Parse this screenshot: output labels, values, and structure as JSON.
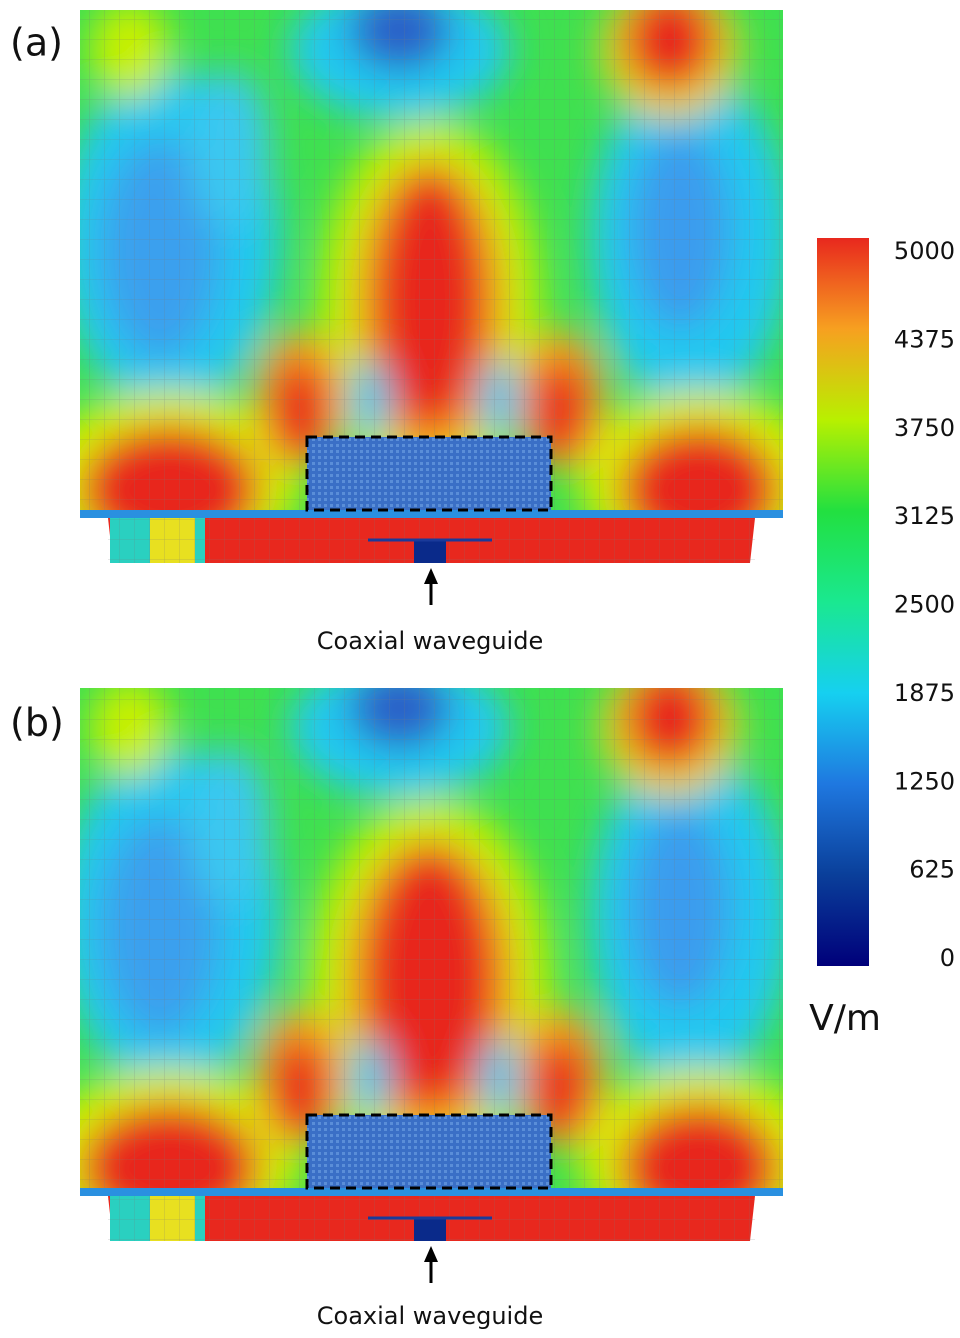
{
  "panels": [
    {
      "label": "(a)",
      "annotation": "Coaxial waveguide"
    },
    {
      "label": "(b)",
      "annotation": "Coaxial waveguide"
    }
  ],
  "colorbar": {
    "lim": [
      0,
      5000
    ],
    "ticks": [
      0,
      625,
      1250,
      1875,
      2500,
      3125,
      3750,
      4375,
      5000
    ],
    "unit": "V/m",
    "colors": [
      "#00007a",
      "#0a3f9a",
      "#1f78e0",
      "#16d0f0",
      "#1ae890",
      "#22e040",
      "#b8f000",
      "#f7a020",
      "#e8281e"
    ]
  }
}
